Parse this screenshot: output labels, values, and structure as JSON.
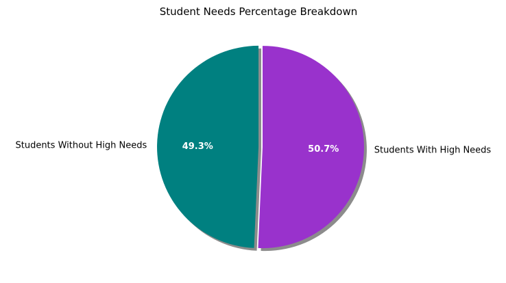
{
  "chart_data": {
    "type": "pie",
    "title": "Student Needs Percentage Breakdown",
    "slices": [
      {
        "label": "Students Without High Needs",
        "value": 49.3,
        "pct_label": "49.3%",
        "color": "#008080"
      },
      {
        "label": "Students With High Needs",
        "value": 50.7,
        "pct_label": "50.7%",
        "color": "#9932CC"
      }
    ],
    "start_angle_degrees": 90,
    "direction": "counterclockwise",
    "exploded": true,
    "shadow": true,
    "legend": "none"
  }
}
